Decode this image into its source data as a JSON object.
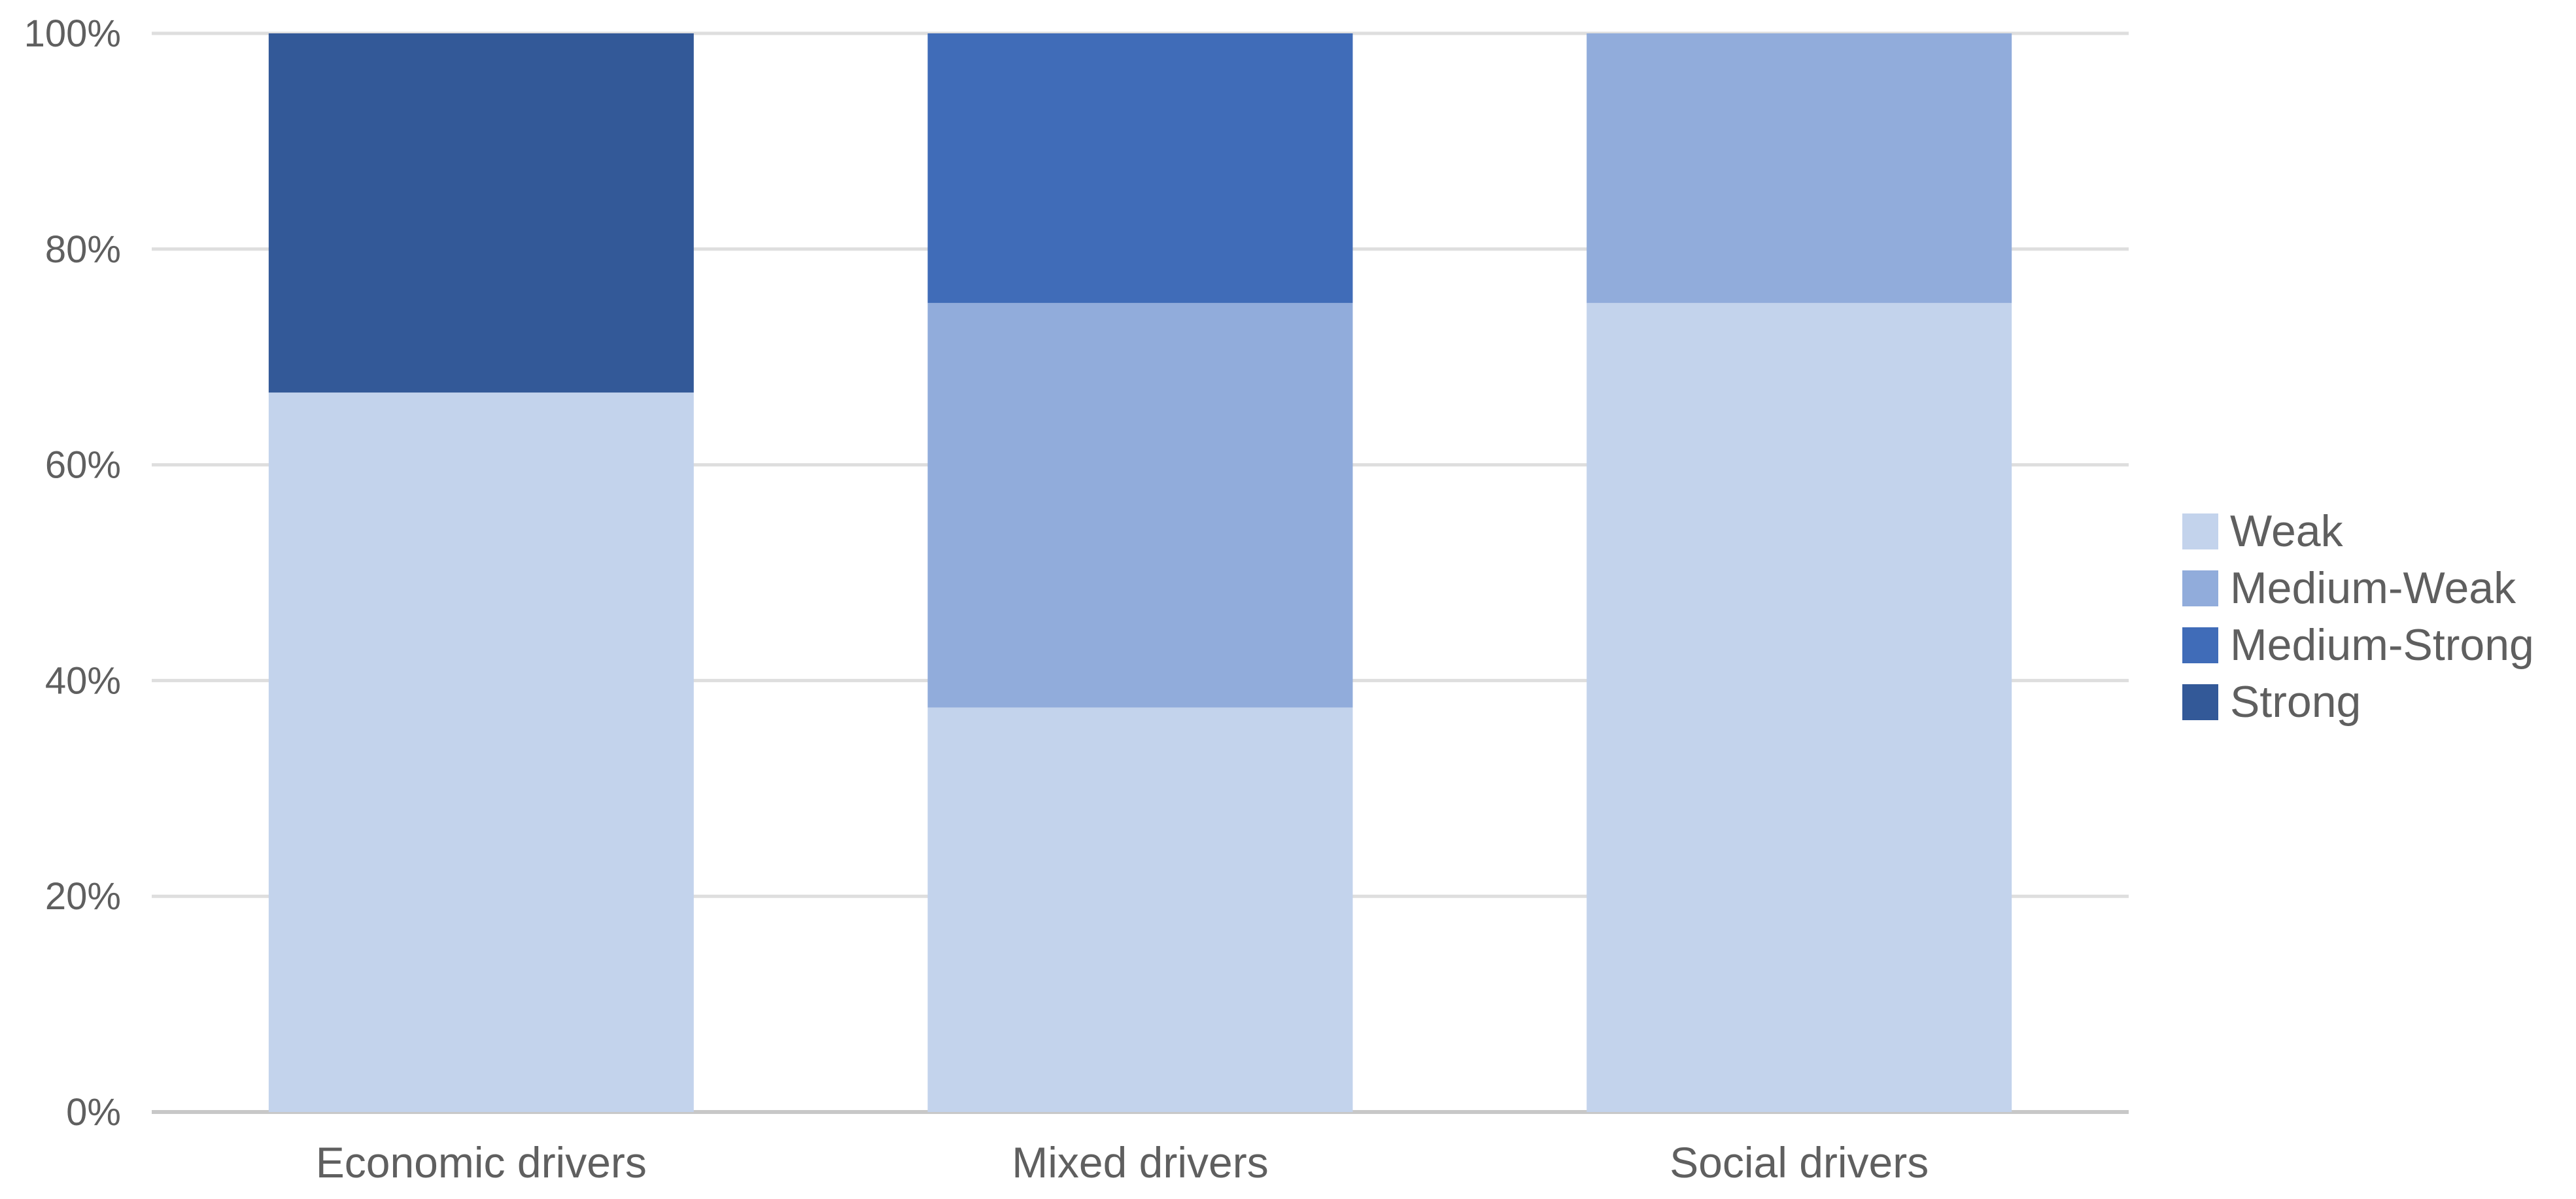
{
  "chart_data": {
    "type": "bar",
    "stacked": true,
    "normalized": true,
    "categories": [
      "Economic drivers",
      "Mixed drivers",
      "Social drivers"
    ],
    "series": [
      {
        "name": "Weak",
        "color": "#c3d3ec",
        "values": [
          66.7,
          37.5,
          75.0
        ]
      },
      {
        "name": "Medium-Weak",
        "color": "#91acdb",
        "values": [
          0.0,
          37.5,
          25.0
        ]
      },
      {
        "name": "Medium-Strong",
        "color": "#406cb8",
        "values": [
          0.0,
          25.0,
          0.0
        ]
      },
      {
        "name": "Strong",
        "color": "#335998",
        "values": [
          33.3,
          0.0,
          0.0
        ]
      }
    ],
    "y_ticks": [
      "0%",
      "20%",
      "40%",
      "60%",
      "80%",
      "100%"
    ],
    "ylim": [
      0,
      100
    ],
    "grid": true,
    "legend_position": "right"
  }
}
